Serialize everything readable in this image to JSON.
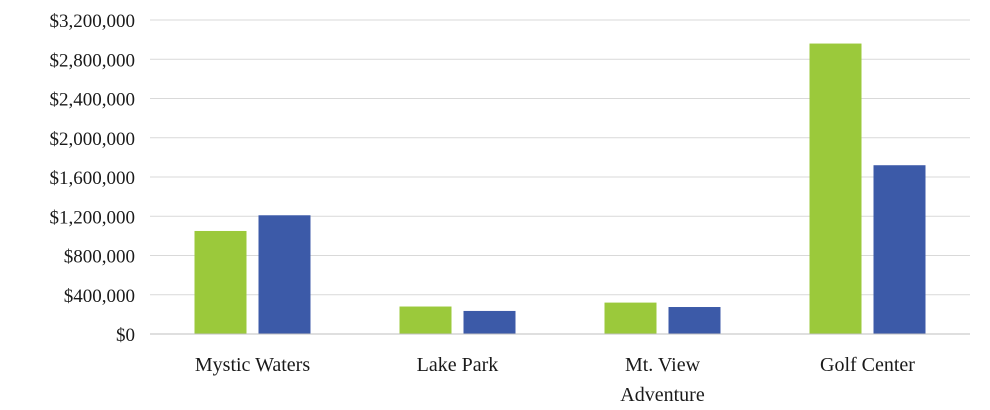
{
  "chart_data": {
    "type": "bar",
    "categories": [
      "Mystic Waters",
      "Lake Park",
      "Mt. View Adventure",
      "Golf Center"
    ],
    "category_lines": [
      [
        "Mystic Waters"
      ],
      [
        "Lake Park"
      ],
      [
        "Mt. View",
        "Adventure"
      ],
      [
        "Golf Center"
      ]
    ],
    "series": [
      {
        "color": "#9bc93b",
        "values": [
          1050000,
          280000,
          320000,
          2960000
        ]
      },
      {
        "color": "#3c5aa8",
        "values": [
          1210000,
          235000,
          275000,
          1720000
        ]
      }
    ],
    "ylim": [
      0,
      3200000
    ],
    "y_ticks": [
      0,
      400000,
      800000,
      1200000,
      1600000,
      2000000,
      2400000,
      2800000,
      3200000
    ],
    "y_tick_labels": [
      "$0",
      "$400,000",
      "$800,000",
      "$1,200,000",
      "$1,600,000",
      "$2,000,000",
      "$2,400,000",
      "$2,800,000",
      "$3,200,000"
    ],
    "grid": true,
    "legend": "none"
  }
}
